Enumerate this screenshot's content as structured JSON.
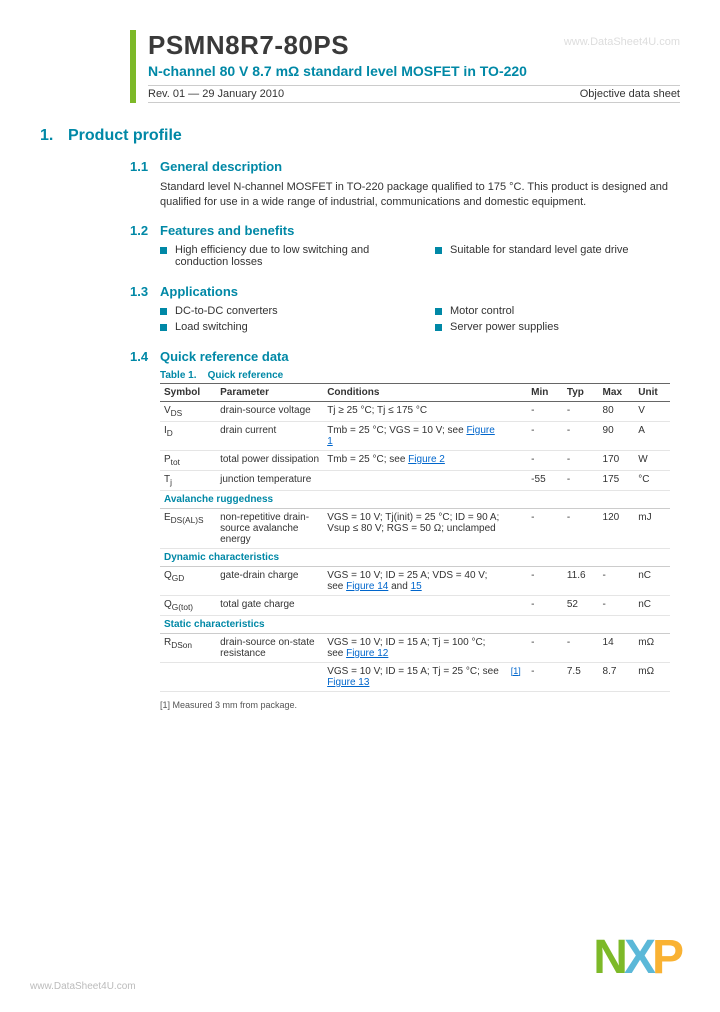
{
  "header": {
    "part_number": "PSMN8R7-80PS",
    "subtitle": "N-channel 80 V 8.7 mΩ standard level MOSFET in TO-220",
    "revision": "Rev. 01 — 29 January 2010",
    "doc_type": "Objective data sheet",
    "watermark_top": "www.DataSheet4U.com"
  },
  "sections": {
    "profile": {
      "num": "1.",
      "title": "Product profile"
    },
    "desc": {
      "num": "1.1",
      "title": "General description",
      "text": "Standard level N-channel MOSFET in TO-220 package qualified to 175 °C. This product is designed and qualified for use in a wide range of industrial, communications and domestic equipment."
    },
    "features": {
      "num": "1.2",
      "title": "Features and benefits",
      "col1": [
        "High efficiency due to low switching and conduction losses"
      ],
      "col2": [
        "Suitable for standard level gate drive"
      ]
    },
    "apps": {
      "num": "1.3",
      "title": "Applications",
      "col1": [
        "DC-to-DC converters",
        "Load switching"
      ],
      "col2": [
        "Motor control",
        "Server power supplies"
      ]
    },
    "quickref": {
      "num": "1.4",
      "title": "Quick reference data"
    }
  },
  "table": {
    "caption_num": "Table 1.",
    "caption_name": "Quick reference",
    "headers": [
      "Symbol",
      "Parameter",
      "Conditions",
      "",
      "Min",
      "Typ",
      "Max",
      "Unit"
    ],
    "rows": [
      {
        "sym": "V",
        "sub": "DS",
        "param": "drain-source voltage",
        "cond": "Tj ≥ 25 °C; Tj ≤ 175 °C",
        "note": "",
        "min": "-",
        "typ": "-",
        "max": "80",
        "unit": "V"
      },
      {
        "sym": "I",
        "sub": "D",
        "param": "drain current",
        "cond": "Tmb = 25 °C; VGS = 10 V; see ",
        "link": "Figure 1",
        "note": "",
        "min": "-",
        "typ": "-",
        "max": "90",
        "unit": "A"
      },
      {
        "sym": "P",
        "sub": "tot",
        "param": "total power dissipation",
        "cond": "Tmb = 25 °C; see ",
        "link": "Figure 2",
        "note": "",
        "min": "-",
        "typ": "-",
        "max": "170",
        "unit": "W"
      },
      {
        "sym": "T",
        "sub": "j",
        "param": "junction temperature",
        "cond": "",
        "note": "",
        "min": "-55",
        "typ": "-",
        "max": "175",
        "unit": "°C"
      }
    ],
    "sub1": "Avalanche ruggedness",
    "rows2": [
      {
        "sym": "E",
        "sub": "DS(AL)S",
        "param": "non-repetitive drain-source avalanche energy",
        "cond": "VGS = 10 V; Tj(init) = 25 °C; ID = 90 A; Vsup ≤ 80 V; RGS = 50 Ω; unclamped",
        "note": "",
        "min": "-",
        "typ": "-",
        "max": "120",
        "unit": "mJ"
      }
    ],
    "sub2": "Dynamic characteristics",
    "rows3": [
      {
        "sym": "Q",
        "sub": "GD",
        "param": "gate-drain charge",
        "cond": "VGS = 10 V; ID = 25 A; VDS = 40 V; see ",
        "link": "Figure 14",
        "extra": " and ",
        "link2": "15",
        "note": "",
        "min": "-",
        "typ": "11.6",
        "max": "-",
        "unit": "nC"
      },
      {
        "sym": "Q",
        "sub": "G(tot)",
        "param": "total gate charge",
        "cond": "",
        "note": "",
        "min": "-",
        "typ": "52",
        "max": "-",
        "unit": "nC"
      }
    ],
    "sub3": "Static characteristics",
    "rows4": [
      {
        "sym": "R",
        "sub": "DSon",
        "param": "drain-source on-state resistance",
        "cond": "VGS = 10 V; ID = 15 A; Tj = 100 °C; see ",
        "link": "Figure 12",
        "note": "",
        "min": "-",
        "typ": "-",
        "max": "14",
        "unit": "mΩ"
      },
      {
        "sym": "",
        "sub": "",
        "param": "",
        "cond": "VGS = 10 V; ID = 15 A; Tj = 25 °C; see ",
        "link": "Figure 13",
        "note": "[1]",
        "min": "-",
        "typ": "7.5",
        "max": "8.7",
        "unit": "mΩ"
      }
    ]
  },
  "footnote": "[1]   Measured 3 mm from package.",
  "logo": {
    "n": "N",
    "x": "X",
    "p": "P"
  },
  "watermark_bottom": "www.DataSheet4U.com",
  "colors": {
    "teal": "#0088a6",
    "green": "#7db928",
    "link": "#0066cc"
  }
}
